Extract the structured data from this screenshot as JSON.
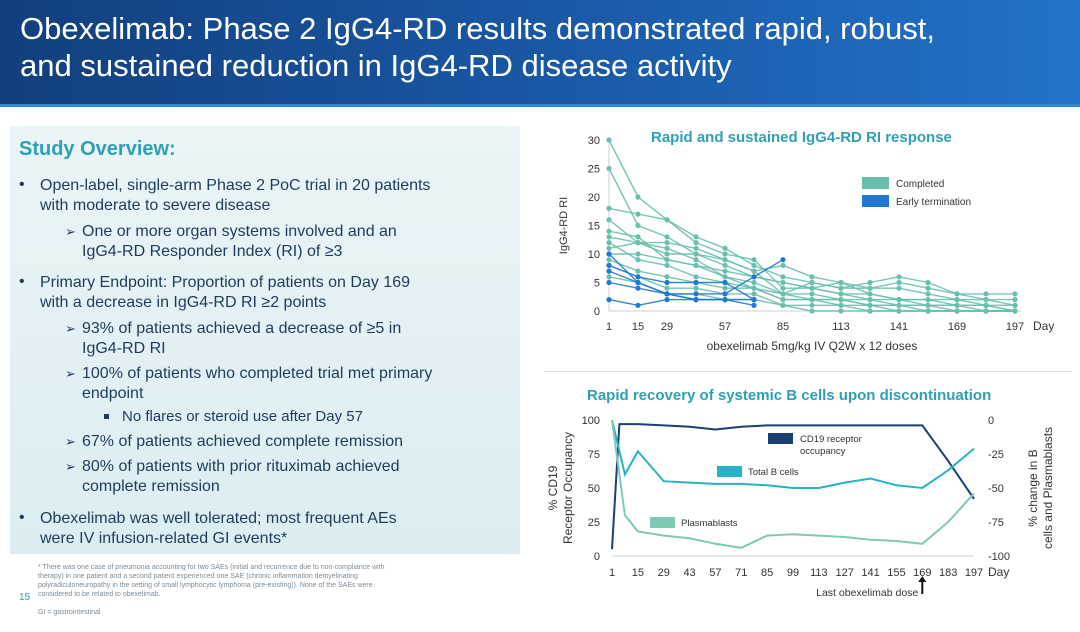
{
  "header": {
    "title_line1": "Obexelimab: Phase 2 IgG4-RD results demonstrated rapid, robust,",
    "title_line2": "and sustained reduction in IgG4-RD disease activity"
  },
  "overview": {
    "title": "Study Overview:",
    "items": [
      {
        "level": 1,
        "lines": [
          "Open-label, single-arm Phase 2 PoC trial in 20 patients",
          "with moderate to severe disease"
        ]
      },
      {
        "level": 2,
        "lines": [
          "One or more organ systems involved and an",
          "IgG4-RD Responder Index (RI) of ≥3"
        ]
      },
      {
        "level": 1,
        "lines": [
          "Primary Endpoint: Proportion of patients on Day 169",
          "with a decrease in IgG4-RD RI ≥2 points"
        ]
      },
      {
        "level": 2,
        "lines": [
          "93% of patients achieved a decrease of ≥5 in",
          "IgG4-RD RI"
        ]
      },
      {
        "level": 2,
        "lines": [
          "100% of patients who completed trial met primary",
          "endpoint"
        ]
      },
      {
        "level": 3,
        "lines": [
          "No flares or steroid use after Day 57"
        ]
      },
      {
        "level": 2,
        "lines": [
          "67% of patients achieved complete remission"
        ]
      },
      {
        "level": 2,
        "lines": [
          "80% of patients with prior rituximab achieved",
          "complete remission"
        ]
      },
      {
        "level": 1,
        "lines": [
          "Obexelimab was well tolerated; most frequent AEs",
          "were IV infusion-related GI events*"
        ]
      }
    ]
  },
  "footnote": {
    "lines": [
      "* There was one case of pneumonia accounting for two SAEs (initial and recurrence due to non-compliance with",
      "therapy) in one patient and a second patient experienced one SAE (chronic inflammation demyelinating",
      "polyradiculoneuropathy in the setting of small lymphocytic lymphoma (pre-existing)). None of the SAEs were",
      "considered to be related to obexelimab."
    ],
    "gi_note": "GI = gastrointestinal",
    "page_number": "15"
  },
  "colors": {
    "teal": "#68bfae",
    "early": "#1f78d1",
    "navy": "#1b3f73",
    "total_b": "#26b3c6",
    "plasmablasts": "#7ec9b5",
    "accent_title": "#2fa0b3"
  },
  "chart_data": [
    {
      "type": "line",
      "title": "Rapid and sustained IgG4-RD RI response",
      "xlabel": "obexelimab 5mg/kg IV Q2W x 12 doses",
      "x_unit_label": "Day",
      "ylabel": "IgG4-RD RI",
      "ylim": [
        0,
        30
      ],
      "y_ticks": [
        0,
        5,
        10,
        15,
        20,
        25,
        30
      ],
      "x_ticks": [
        1,
        15,
        29,
        57,
        85,
        113,
        141,
        169,
        197
      ],
      "x_visit_days": [
        1,
        15,
        29,
        43,
        57,
        71,
        85,
        99,
        113,
        127,
        141,
        155,
        169,
        183,
        197
      ],
      "legend": [
        {
          "label": "Completed",
          "color": "#68bfae"
        },
        {
          "label": "Early termination",
          "color": "#1f78d1"
        }
      ],
      "legend_position": "top-right",
      "series": [
        {
          "group": "Completed",
          "x": [
            1,
            15,
            29,
            43,
            57,
            71,
            85,
            99,
            113,
            127,
            141,
            155,
            169,
            183,
            197
          ],
          "y": [
            30,
            20,
            16,
            13,
            11,
            8,
            6,
            5,
            4,
            4,
            5,
            4,
            3,
            2,
            2
          ]
        },
        {
          "group": "Completed",
          "x": [
            1,
            15,
            29,
            43,
            57,
            71,
            85,
            99,
            113,
            127,
            141,
            155,
            169,
            183,
            197
          ],
          "y": [
            25,
            15,
            13,
            10,
            8,
            6,
            5,
            4,
            5,
            4,
            4,
            3,
            2,
            2,
            1
          ]
        },
        {
          "group": "Completed",
          "x": [
            1,
            15,
            29,
            43,
            57,
            71,
            85,
            99,
            113,
            127,
            141,
            155,
            169,
            183,
            197
          ],
          "y": [
            18,
            17,
            16,
            12,
            10,
            9,
            4,
            4,
            3,
            3,
            2,
            2,
            2,
            1,
            1
          ]
        },
        {
          "group": "Completed",
          "x": [
            1,
            15,
            29,
            43,
            57,
            71,
            85,
            99,
            113,
            127,
            141,
            155,
            169,
            183,
            197
          ],
          "y": [
            16,
            12,
            11,
            9,
            6,
            5,
            3,
            5,
            4,
            5,
            6,
            5,
            3,
            3,
            3
          ]
        },
        {
          "group": "Completed",
          "x": [
            1,
            15,
            29,
            43,
            57,
            71,
            85,
            99,
            113,
            127,
            141,
            155,
            169,
            183,
            197
          ],
          "y": [
            14,
            13,
            9,
            8,
            7,
            6,
            5,
            4,
            3,
            2,
            2,
            1,
            1,
            1,
            0
          ]
        },
        {
          "group": "Completed",
          "x": [
            1,
            15,
            29,
            43,
            57,
            71,
            85,
            99,
            113,
            127,
            141,
            155,
            169,
            183,
            197
          ],
          "y": [
            13,
            12,
            10,
            10,
            9,
            7,
            3,
            3,
            2,
            2,
            1,
            1,
            0,
            0,
            0
          ]
        },
        {
          "group": "Completed",
          "x": [
            1,
            15,
            29,
            43,
            57,
            71,
            85,
            99,
            113,
            127,
            141,
            155,
            169,
            183,
            197
          ],
          "y": [
            12,
            9,
            8,
            6,
            5,
            4,
            3,
            2,
            2,
            1,
            1,
            0,
            0,
            0,
            0
          ]
        },
        {
          "group": "Completed",
          "x": [
            1,
            15,
            29,
            43,
            57,
            71,
            85,
            99,
            113,
            127,
            141,
            155,
            169,
            183,
            197
          ],
          "y": [
            11,
            12,
            12,
            11,
            9,
            7,
            8,
            6,
            5,
            3,
            2,
            2,
            1,
            1,
            0
          ]
        },
        {
          "group": "Completed",
          "x": [
            1,
            15,
            29,
            43,
            57,
            71,
            85,
            99,
            113,
            127,
            141,
            155,
            169,
            183,
            197
          ],
          "y": [
            10,
            10,
            9,
            8,
            6,
            4,
            2,
            2,
            1,
            1,
            1,
            1,
            1,
            0,
            0
          ]
        },
        {
          "group": "Completed",
          "x": [
            1,
            15,
            29,
            43,
            57,
            71,
            85,
            99,
            113,
            127,
            141,
            155,
            169,
            183,
            197
          ],
          "y": [
            9,
            7,
            6,
            5,
            4,
            4,
            2,
            2,
            2,
            1,
            0,
            0,
            0,
            0,
            0
          ]
        },
        {
          "group": "Completed",
          "x": [
            1,
            15,
            29,
            43,
            57,
            71,
            85,
            99,
            113,
            127,
            141,
            155,
            169,
            183,
            197
          ],
          "y": [
            8,
            6,
            4,
            4,
            3,
            3,
            1,
            1,
            1,
            0,
            0,
            0,
            0,
            0,
            0
          ]
        },
        {
          "group": "Completed",
          "x": [
            1,
            15,
            29,
            43,
            57,
            71,
            85,
            99,
            113,
            127,
            141,
            155,
            169,
            183,
            197
          ],
          "y": [
            6,
            5,
            3,
            3,
            2,
            2,
            1,
            0,
            0,
            0,
            0,
            0,
            0,
            0,
            0
          ]
        },
        {
          "group": "Early termination",
          "x": [
            1,
            15,
            29,
            43,
            57,
            71,
            85
          ],
          "y": [
            10,
            5,
            3,
            3,
            3,
            6,
            9
          ]
        },
        {
          "group": "Early termination",
          "x": [
            1,
            15,
            29,
            43,
            57,
            71
          ],
          "y": [
            8,
            6,
            5,
            5,
            5,
            2
          ]
        },
        {
          "group": "Early termination",
          "x": [
            1,
            15,
            29,
            43,
            57,
            71
          ],
          "y": [
            5,
            4,
            3,
            2,
            2,
            2
          ]
        },
        {
          "group": "Early termination",
          "x": [
            1,
            15,
            29,
            43,
            57,
            71
          ],
          "y": [
            2,
            1,
            2,
            2,
            2,
            1
          ]
        },
        {
          "group": "Early termination",
          "x": [
            1,
            15,
            29,
            43,
            57
          ],
          "y": [
            7,
            5,
            3,
            2,
            2
          ]
        }
      ]
    },
    {
      "type": "line",
      "title": "Rapid recovery of systemic B cells upon discontinuation",
      "x_unit_label": "Day",
      "x_ticks": [
        1,
        15,
        29,
        43,
        57,
        71,
        85,
        99,
        113,
        127,
        141,
        155,
        169,
        183,
        197
      ],
      "ylabel_left": "% CD19 Receptor Occupancy",
      "ylim_left": [
        0,
        100
      ],
      "y_ticks_left": [
        0,
        25,
        50,
        75,
        100
      ],
      "ylabel_right": "% change in B cells and Plasmablasts",
      "ylim_right": [
        -100,
        0
      ],
      "y_ticks_right": [
        0,
        -25,
        -50,
        -75,
        -100
      ],
      "annotation": "Last obexelimab dose",
      "annotation_x": 169,
      "series": [
        {
          "name": "CD19 receptor occupancy",
          "axis": "left",
          "color": "#1b3f73",
          "x": [
            1,
            5,
            15,
            29,
            43,
            57,
            71,
            85,
            99,
            113,
            127,
            141,
            155,
            169,
            183,
            197
          ],
          "y": [
            5,
            97,
            97,
            96,
            95,
            93,
            95,
            96,
            96,
            96,
            96,
            96,
            96,
            96,
            70,
            42
          ]
        },
        {
          "name": "Total B cells",
          "axis": "right",
          "color": "#26b3c6",
          "x": [
            1,
            8,
            15,
            29,
            43,
            57,
            71,
            85,
            99,
            113,
            127,
            141,
            155,
            169,
            183,
            197
          ],
          "y": [
            0,
            -40,
            -23,
            -45,
            -46,
            -47,
            -47,
            -48,
            -50,
            -50,
            -46,
            -43,
            -48,
            -50,
            -37,
            -21
          ]
        },
        {
          "name": "Plasmablasts",
          "axis": "right",
          "color": "#7ec9b5",
          "x": [
            1,
            8,
            15,
            29,
            43,
            57,
            71,
            85,
            99,
            113,
            127,
            141,
            155,
            169,
            183,
            197
          ],
          "y": [
            0,
            -70,
            -82,
            -85,
            -87,
            -91,
            -94,
            -85,
            -84,
            -85,
            -86,
            -88,
            -89,
            -91,
            -75,
            -54
          ]
        }
      ]
    }
  ]
}
